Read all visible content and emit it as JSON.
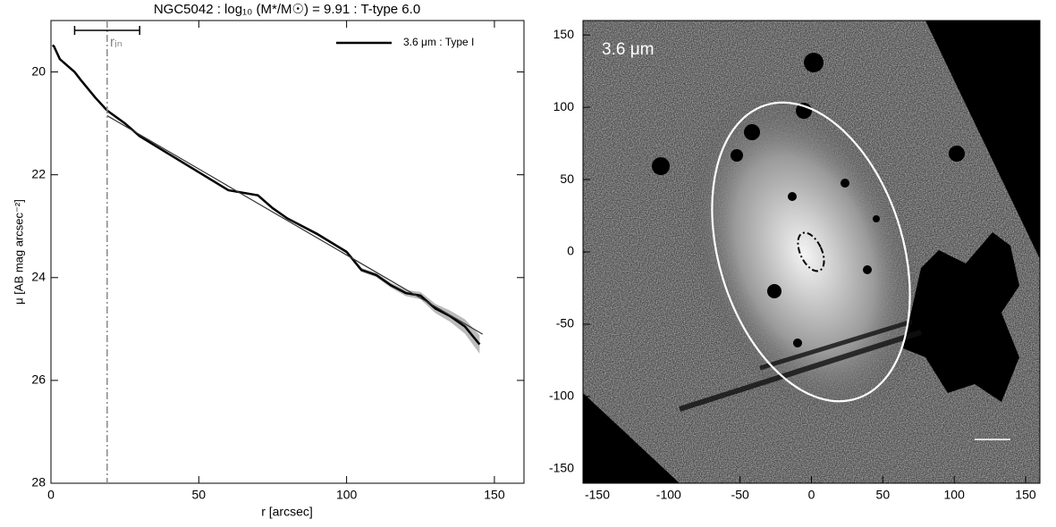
{
  "chart_data": [
    {
      "type": "line",
      "title": "NGC5042 : log₁₀ (M*/M☉) = 9.91 : T-type 6.0",
      "xlabel": "r [arcsec]",
      "ylabel": "μ [AB mag arcsec⁻²]",
      "xlim": [
        0,
        160
      ],
      "xticks": [
        0,
        50,
        100,
        150
      ],
      "ylim": [
        28,
        19
      ],
      "yticks": [
        20,
        22,
        24,
        26,
        28
      ],
      "legend": "upper right",
      "x": [
        0.5,
        1,
        3,
        5,
        8,
        10,
        15,
        19,
        25,
        30,
        40,
        50,
        60,
        65,
        70,
        75,
        80,
        90,
        100,
        105,
        110,
        115,
        120,
        125,
        130,
        135,
        140,
        145
      ],
      "series": [
        {
          "name": "3.6 μm : Type I",
          "color": "#000000",
          "values": [
            19.48,
            19.5,
            19.75,
            19.85,
            20.0,
            20.15,
            20.5,
            20.75,
            21.0,
            21.25,
            21.6,
            21.95,
            22.3,
            22.35,
            22.4,
            22.65,
            22.85,
            23.15,
            23.5,
            23.85,
            23.95,
            24.15,
            24.3,
            24.35,
            24.6,
            24.75,
            24.95,
            25.3
          ],
          "errors": [
            0.01,
            0.01,
            0.01,
            0.01,
            0.01,
            0.01,
            0.01,
            0.01,
            0.01,
            0.01,
            0.01,
            0.01,
            0.02,
            0.02,
            0.02,
            0.02,
            0.02,
            0.03,
            0.03,
            0.04,
            0.04,
            0.05,
            0.06,
            0.07,
            0.09,
            0.11,
            0.14,
            0.18
          ]
        }
      ],
      "fit": {
        "x": [
          19,
          146
        ],
        "values": [
          20.85,
          25.1
        ],
        "color": "#333333"
      },
      "r_in": {
        "label": "rᵢₙ",
        "value": 19,
        "range": [
          8,
          30
        ]
      }
    },
    {
      "type": "image",
      "label": "3.6 μm",
      "xlim": [
        -160,
        160
      ],
      "xticks": [
        -150,
        -100,
        -50,
        0,
        50,
        100,
        150
      ],
      "ylim": [
        -160,
        160
      ],
      "yticks": [
        -150,
        -100,
        -50,
        0,
        50,
        100,
        150
      ]
    }
  ]
}
